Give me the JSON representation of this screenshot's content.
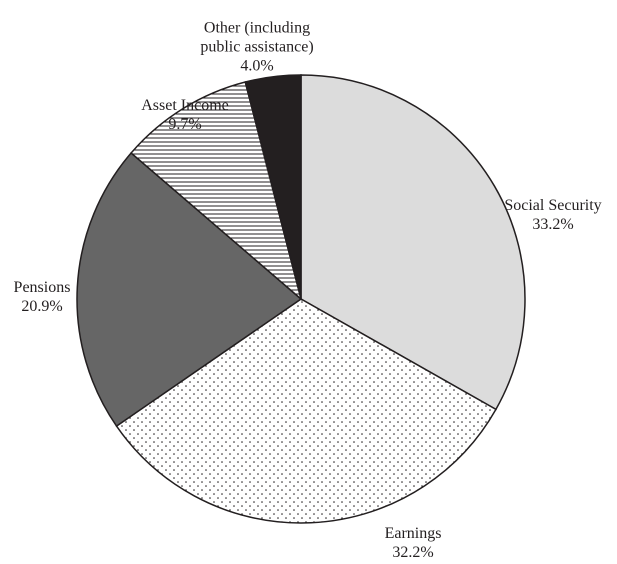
{
  "chart_data": {
    "type": "pie",
    "categories": [
      "Social Security",
      "Earnings",
      "Pensions",
      "Asset Income",
      "Other (including public assistance)"
    ],
    "values": [
      33.2,
      32.2,
      20.9,
      9.7,
      4.0
    ],
    "value_labels": [
      "33.2%",
      "32.2%",
      "20.9%",
      "9.7%",
      "4.0%"
    ],
    "fills": [
      "#dcdcdc",
      "dotted",
      "#666666",
      "horizontal-stripes",
      "#231f20"
    ]
  }
}
